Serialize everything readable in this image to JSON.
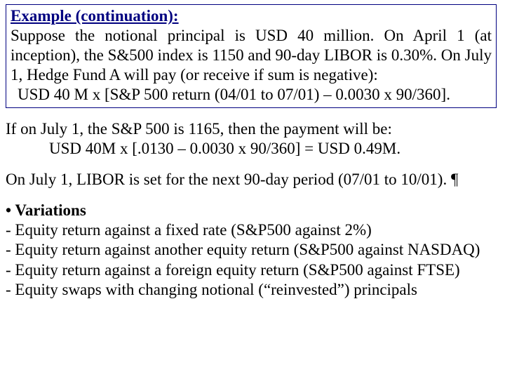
{
  "title_color": "#000080",
  "border_color": "#000080",
  "text_color": "#000000",
  "background_color": "#ffffff",
  "font_family": "Times New Roman",
  "font_size_pt": 18,
  "box": {
    "title": "Example (continuation):",
    "line1": "Suppose the notional principal is USD 40 million. On April 1 (at inception), the S&500 index is 1150 and 90-day LIBOR is 0.30%. On July 1, Hedge Fund A will pay (or receive if sum is negative):",
    "line2": "USD 40 M x [S&P 500 return (04/01 to 07/01) – 0.0030 x 90/360]."
  },
  "para1": {
    "line1": "If on July 1, the S&P 500 is 1165, then the payment will be:",
    "line2": "USD 40M x [.0130 – 0.0030 x 90/360] = USD 0.49M."
  },
  "para2": "On July 1, LIBOR is set for the next 90-day period (07/01 to 10/01). ¶",
  "variations": {
    "header": "• Variations",
    "items": [
      "- Equity return against a fixed rate (S&P500 against 2%)",
      "- Equity return against another equity return (S&P500 against NASDAQ)",
      "- Equity return against a foreign equity return (S&P500 against FTSE)",
      "- Equity swaps with changing notional (“reinvested”) principals"
    ]
  }
}
